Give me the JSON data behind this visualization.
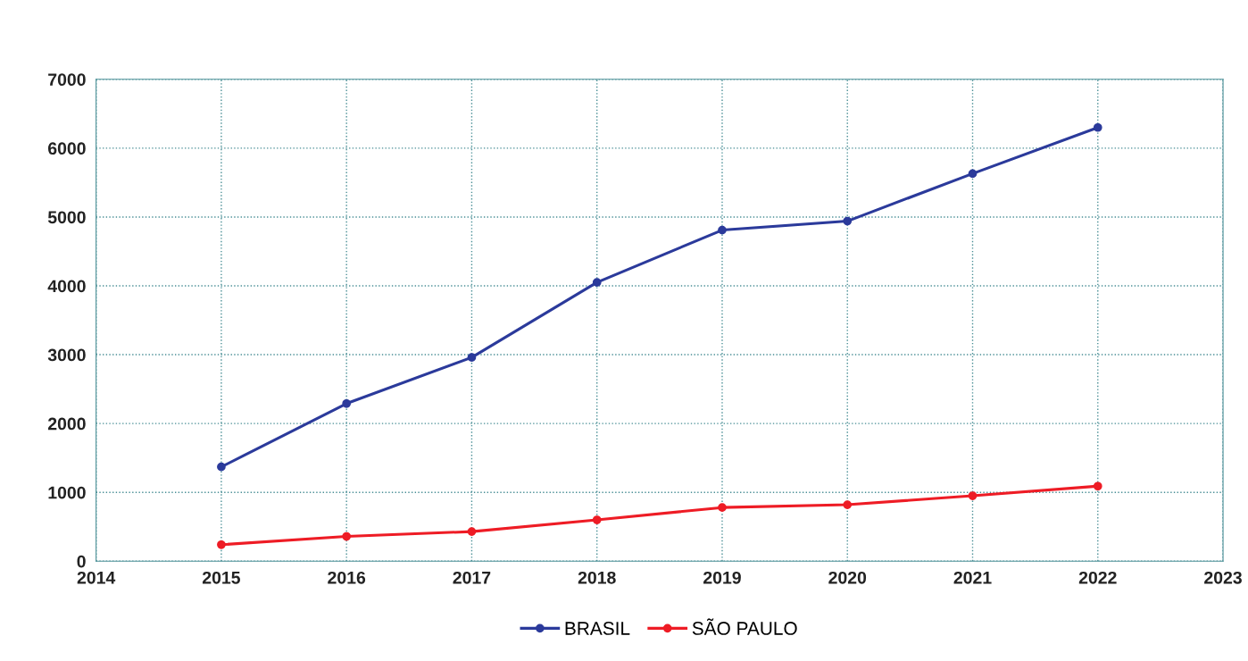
{
  "chart_data": {
    "type": "line",
    "x": [
      2015,
      2016,
      2017,
      2018,
      2019,
      2020,
      2021,
      2022
    ],
    "series": [
      {
        "name": "BRASIL",
        "color": "#2b3a9b",
        "values": [
          1370,
          2290,
          2960,
          4050,
          4810,
          4940,
          5630,
          6300
        ]
      },
      {
        "name": "SÃO PAULO",
        "color": "#ee1c25",
        "values": [
          240,
          360,
          430,
          600,
          780,
          820,
          950,
          1090
        ]
      }
    ],
    "xlim": [
      2014,
      2023
    ],
    "xticks": [
      2014,
      2015,
      2016,
      2017,
      2018,
      2019,
      2020,
      2021,
      2022,
      2023
    ],
    "ylim": [
      0,
      7000
    ],
    "yticks": [
      0,
      1000,
      2000,
      3000,
      4000,
      5000,
      6000,
      7000
    ],
    "grid": true,
    "legend": "bottom",
    "marker": "circle",
    "line_style": "solid"
  }
}
